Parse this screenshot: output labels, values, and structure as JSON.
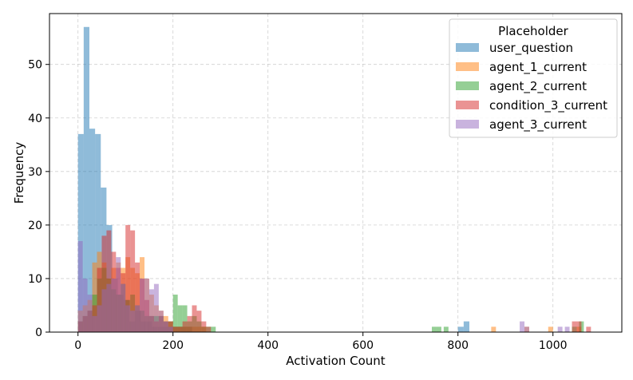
{
  "chart_data": {
    "type": "bar",
    "xlabel": "Activation Count",
    "ylabel": "Frequency",
    "xlim": [
      -60,
      1145
    ],
    "ylim": [
      0,
      59.5
    ],
    "xticks": [
      0,
      200,
      400,
      600,
      800,
      1000
    ],
    "yticks": [
      0,
      10,
      20,
      30,
      40,
      50
    ],
    "grid": true,
    "legend": {
      "title": "Placeholder",
      "position": "top-right"
    },
    "series": [
      {
        "name": "user_question",
        "color": "#1f77b4",
        "bin_width": 12,
        "bins": [
          [
            0,
            37
          ],
          [
            12,
            57
          ],
          [
            24,
            38
          ],
          [
            36,
            37
          ],
          [
            48,
            27
          ],
          [
            60,
            20
          ],
          [
            72,
            10
          ],
          [
            84,
            7
          ],
          [
            96,
            6
          ],
          [
            108,
            2
          ],
          [
            120,
            4
          ],
          [
            132,
            2
          ],
          [
            144,
            2
          ],
          [
            156,
            1
          ],
          [
            168,
            1
          ],
          [
            180,
            1
          ],
          [
            192,
            1
          ],
          [
            204,
            1
          ],
          [
            216,
            1
          ],
          [
            228,
            1
          ],
          [
            800,
            1
          ],
          [
            812,
            2
          ]
        ]
      },
      {
        "name": "agent_1_current",
        "color": "#ff7f0e",
        "bin_width": 10,
        "bins": [
          [
            0,
            4
          ],
          [
            10,
            5
          ],
          [
            20,
            6
          ],
          [
            30,
            13
          ],
          [
            40,
            15
          ],
          [
            50,
            13
          ],
          [
            60,
            10
          ],
          [
            70,
            12
          ],
          [
            80,
            13
          ],
          [
            90,
            12
          ],
          [
            100,
            14
          ],
          [
            110,
            12
          ],
          [
            120,
            11
          ],
          [
            130,
            14
          ],
          [
            140,
            10
          ],
          [
            150,
            7
          ],
          [
            160,
            5
          ],
          [
            170,
            4
          ],
          [
            180,
            3
          ],
          [
            190,
            2
          ],
          [
            200,
            1
          ],
          [
            210,
            1
          ],
          [
            220,
            1
          ],
          [
            230,
            1
          ],
          [
            240,
            1
          ],
          [
            250,
            1
          ],
          [
            260,
            1
          ],
          [
            870,
            1
          ],
          [
            940,
            1
          ],
          [
            990,
            1
          ],
          [
            1050,
            1
          ]
        ]
      },
      {
        "name": "agent_2_current",
        "color": "#2ca02c",
        "bin_width": 10,
        "bins": [
          [
            0,
            2
          ],
          [
            10,
            3
          ],
          [
            20,
            4
          ],
          [
            30,
            7
          ],
          [
            40,
            10
          ],
          [
            50,
            12
          ],
          [
            60,
            10
          ],
          [
            70,
            8
          ],
          [
            80,
            7
          ],
          [
            90,
            9
          ],
          [
            100,
            6
          ],
          [
            110,
            7
          ],
          [
            120,
            5
          ],
          [
            130,
            4
          ],
          [
            140,
            3
          ],
          [
            150,
            3
          ],
          [
            160,
            3
          ],
          [
            170,
            3
          ],
          [
            180,
            2
          ],
          [
            190,
            2
          ],
          [
            200,
            7
          ],
          [
            210,
            5
          ],
          [
            220,
            5
          ],
          [
            230,
            2
          ],
          [
            240,
            3
          ],
          [
            250,
            2
          ],
          [
            260,
            1
          ],
          [
            270,
            1
          ],
          [
            280,
            1
          ],
          [
            745,
            1
          ],
          [
            755,
            1
          ],
          [
            770,
            1
          ],
          [
            1040,
            1
          ],
          [
            1055,
            2
          ]
        ]
      },
      {
        "name": "condition_3_current",
        "color": "#d62728",
        "bin_width": 10,
        "bins": [
          [
            0,
            2
          ],
          [
            10,
            3
          ],
          [
            20,
            4
          ],
          [
            30,
            5
          ],
          [
            40,
            12
          ],
          [
            50,
            18
          ],
          [
            60,
            19
          ],
          [
            70,
            15
          ],
          [
            80,
            12
          ],
          [
            90,
            11
          ],
          [
            100,
            20
          ],
          [
            110,
            19
          ],
          [
            120,
            13
          ],
          [
            130,
            10
          ],
          [
            140,
            6
          ],
          [
            150,
            3
          ],
          [
            160,
            2
          ],
          [
            170,
            3
          ],
          [
            180,
            2
          ],
          [
            190,
            2
          ],
          [
            200,
            1
          ],
          [
            210,
            1
          ],
          [
            220,
            2
          ],
          [
            230,
            3
          ],
          [
            240,
            5
          ],
          [
            250,
            4
          ],
          [
            260,
            2
          ],
          [
            270,
            1
          ],
          [
            1040,
            2
          ],
          [
            1050,
            2
          ],
          [
            1070,
            1
          ]
        ]
      },
      {
        "name": "agent_3_current",
        "color": "#9467bd",
        "bin_width": 10,
        "bins": [
          [
            0,
            17
          ],
          [
            10,
            10
          ],
          [
            20,
            7
          ],
          [
            30,
            3
          ],
          [
            40,
            5
          ],
          [
            50,
            8
          ],
          [
            60,
            9
          ],
          [
            70,
            10
          ],
          [
            80,
            14
          ],
          [
            90,
            9
          ],
          [
            100,
            5
          ],
          [
            110,
            4
          ],
          [
            120,
            5
          ],
          [
            130,
            10
          ],
          [
            140,
            10
          ],
          [
            150,
            8
          ],
          [
            160,
            9
          ],
          [
            170,
            4
          ],
          [
            180,
            2
          ],
          [
            190,
            1
          ],
          [
            930,
            2
          ],
          [
            940,
            1
          ],
          [
            1010,
            1
          ],
          [
            1025,
            1
          ]
        ]
      }
    ]
  }
}
